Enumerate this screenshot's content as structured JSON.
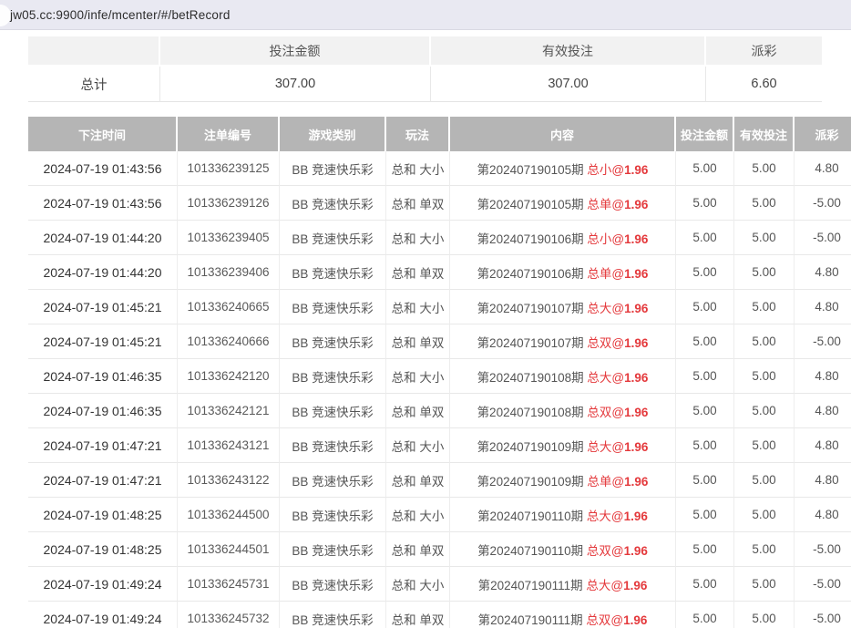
{
  "browser": {
    "url": "jw05.cc:9900/infe/mcenter/#/betRecord"
  },
  "colors": {
    "accent_red": "#e4393c",
    "negative_red": "#f56c6c",
    "table_header_bg": "#b5b5b5",
    "summary_header_bg": "#f2f2f2",
    "topbar_bg": "#e9e9f2"
  },
  "summary": {
    "columns": [
      "投注金额",
      "有效投注",
      "派彩"
    ],
    "row_label": "总计",
    "bet_amount": "307.00",
    "valid_bet": "307.00",
    "payout": "6.60"
  },
  "table": {
    "headers": [
      "下注时间",
      "注单编号",
      "游戏类别",
      "玩法",
      "内容",
      "投注金额",
      "有效投注",
      "派彩"
    ],
    "rows": [
      {
        "time": "2024-07-19 01:43:56",
        "bet_id": "101336239125",
        "game": "BB 竞速快乐彩",
        "play": "总和 大小",
        "period": "第202407190105期",
        "pick": "总小",
        "odds": "1.96",
        "bet_amount": "5.00",
        "valid_bet": "5.00",
        "payout": "4.80"
      },
      {
        "time": "2024-07-19 01:43:56",
        "bet_id": "101336239126",
        "game": "BB 竞速快乐彩",
        "play": "总和 单双",
        "period": "第202407190105期",
        "pick": "总单",
        "odds": "1.96",
        "bet_amount": "5.00",
        "valid_bet": "5.00",
        "payout": "-5.00"
      },
      {
        "time": "2024-07-19 01:44:20",
        "bet_id": "101336239405",
        "game": "BB 竞速快乐彩",
        "play": "总和 大小",
        "period": "第202407190106期",
        "pick": "总小",
        "odds": "1.96",
        "bet_amount": "5.00",
        "valid_bet": "5.00",
        "payout": "-5.00"
      },
      {
        "time": "2024-07-19 01:44:20",
        "bet_id": "101336239406",
        "game": "BB 竞速快乐彩",
        "play": "总和 单双",
        "period": "第202407190106期",
        "pick": "总单",
        "odds": "1.96",
        "bet_amount": "5.00",
        "valid_bet": "5.00",
        "payout": "4.80"
      },
      {
        "time": "2024-07-19 01:45:21",
        "bet_id": "101336240665",
        "game": "BB 竞速快乐彩",
        "play": "总和 大小",
        "period": "第202407190107期",
        "pick": "总大",
        "odds": "1.96",
        "bet_amount": "5.00",
        "valid_bet": "5.00",
        "payout": "4.80"
      },
      {
        "time": "2024-07-19 01:45:21",
        "bet_id": "101336240666",
        "game": "BB 竞速快乐彩",
        "play": "总和 单双",
        "period": "第202407190107期",
        "pick": "总双",
        "odds": "1.96",
        "bet_amount": "5.00",
        "valid_bet": "5.00",
        "payout": "-5.00"
      },
      {
        "time": "2024-07-19 01:46:35",
        "bet_id": "101336242120",
        "game": "BB 竞速快乐彩",
        "play": "总和 大小",
        "period": "第202407190108期",
        "pick": "总大",
        "odds": "1.96",
        "bet_amount": "5.00",
        "valid_bet": "5.00",
        "payout": "4.80"
      },
      {
        "time": "2024-07-19 01:46:35",
        "bet_id": "101336242121",
        "game": "BB 竞速快乐彩",
        "play": "总和 单双",
        "period": "第202407190108期",
        "pick": "总双",
        "odds": "1.96",
        "bet_amount": "5.00",
        "valid_bet": "5.00",
        "payout": "4.80"
      },
      {
        "time": "2024-07-19 01:47:21",
        "bet_id": "101336243121",
        "game": "BB 竞速快乐彩",
        "play": "总和 大小",
        "period": "第202407190109期",
        "pick": "总大",
        "odds": "1.96",
        "bet_amount": "5.00",
        "valid_bet": "5.00",
        "payout": "4.80"
      },
      {
        "time": "2024-07-19 01:47:21",
        "bet_id": "101336243122",
        "game": "BB 竞速快乐彩",
        "play": "总和 单双",
        "period": "第202407190109期",
        "pick": "总单",
        "odds": "1.96",
        "bet_amount": "5.00",
        "valid_bet": "5.00",
        "payout": "4.80"
      },
      {
        "time": "2024-07-19 01:48:25",
        "bet_id": "101336244500",
        "game": "BB 竞速快乐彩",
        "play": "总和 大小",
        "period": "第202407190110期",
        "pick": "总大",
        "odds": "1.96",
        "bet_amount": "5.00",
        "valid_bet": "5.00",
        "payout": "4.80"
      },
      {
        "time": "2024-07-19 01:48:25",
        "bet_id": "101336244501",
        "game": "BB 竞速快乐彩",
        "play": "总和 单双",
        "period": "第202407190110期",
        "pick": "总双",
        "odds": "1.96",
        "bet_amount": "5.00",
        "valid_bet": "5.00",
        "payout": "-5.00"
      },
      {
        "time": "2024-07-19 01:49:24",
        "bet_id": "101336245731",
        "game": "BB 竞速快乐彩",
        "play": "总和 大小",
        "period": "第202407190111期",
        "pick": "总大",
        "odds": "1.96",
        "bet_amount": "5.00",
        "valid_bet": "5.00",
        "payout": "-5.00"
      },
      {
        "time": "2024-07-19 01:49:24",
        "bet_id": "101336245732",
        "game": "BB 竞速快乐彩",
        "play": "总和 单双",
        "period": "第202407190111期",
        "pick": "总双",
        "odds": "1.96",
        "bet_amount": "5.00",
        "valid_bet": "5.00",
        "payout": "-5.00"
      }
    ]
  }
}
